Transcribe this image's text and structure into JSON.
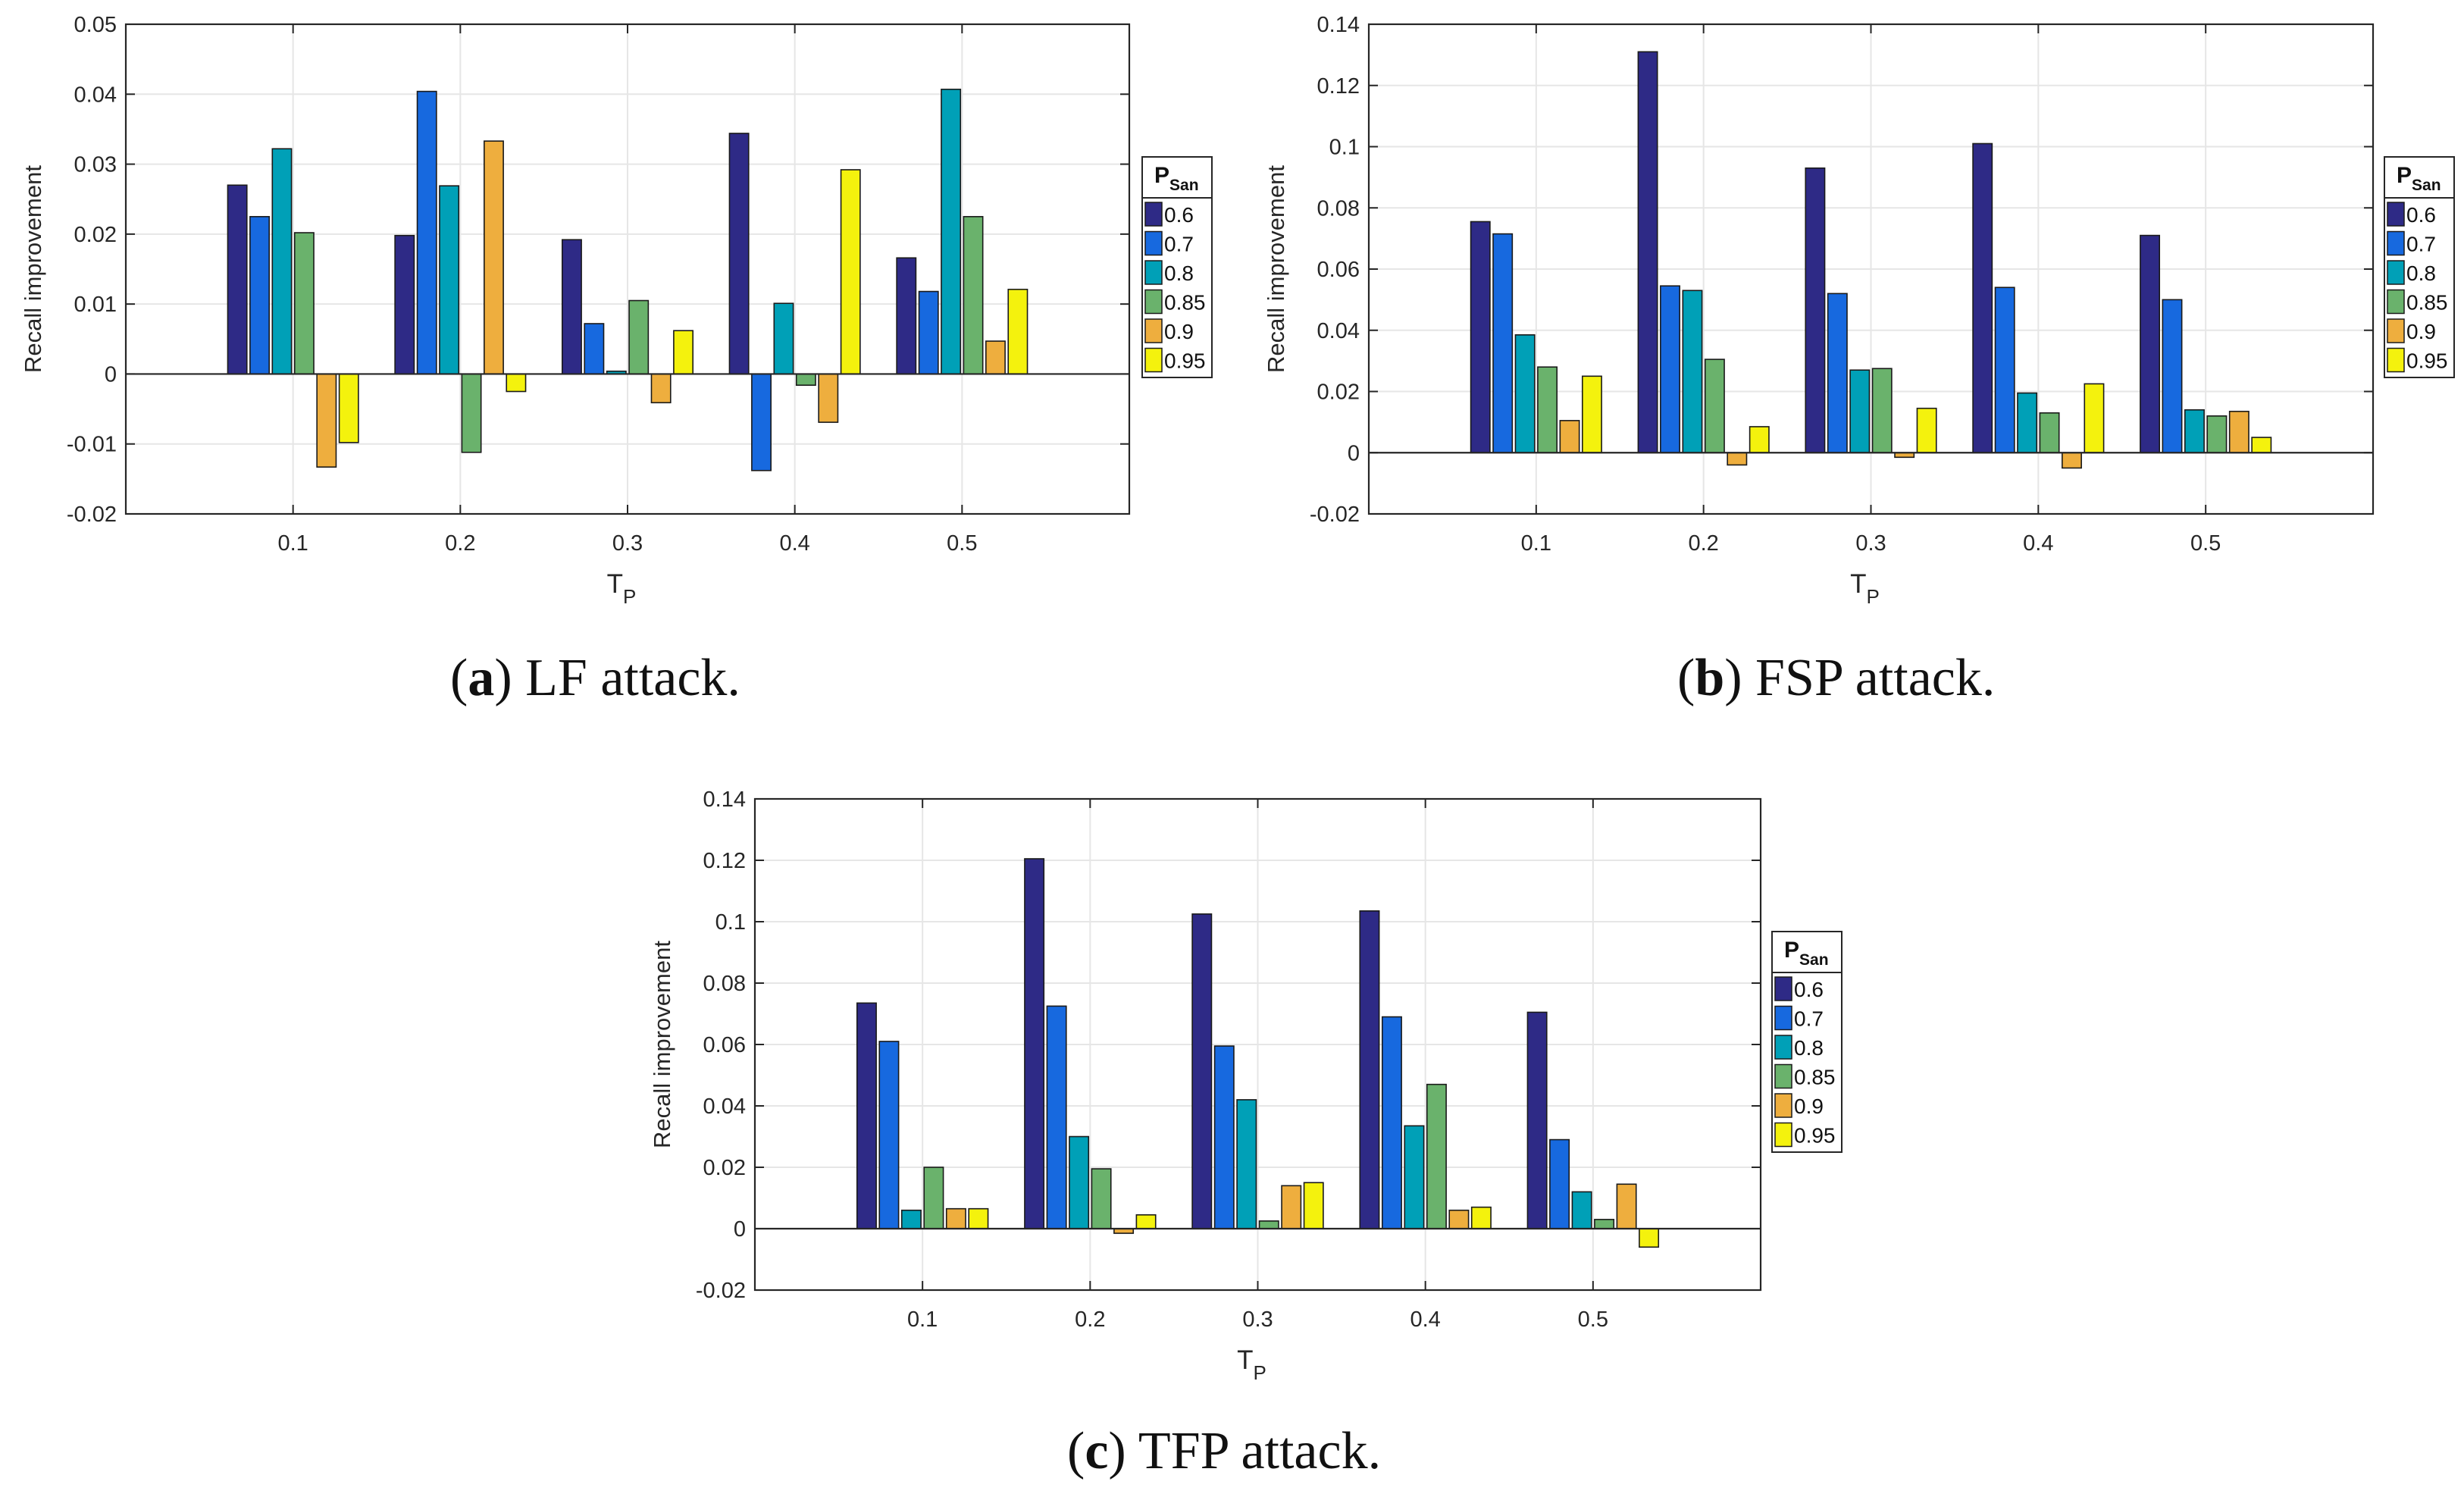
{
  "legend_title_main": "P",
  "legend_title_sub": "San",
  "colors": [
    "#2e2a86",
    "#1769df",
    "#00a0b7",
    "#6ab26c",
    "#eeae3e",
    "#f4f20d"
  ],
  "captions": [
    {
      "letter": "a",
      "text": ") LF attack."
    },
    {
      "letter": "b",
      "text": ") FSP attack."
    },
    {
      "letter": "c",
      "text": ") TFP attack."
    }
  ],
  "chart_data": [
    {
      "type": "bar",
      "caption": "(a) LF attack.",
      "xlabel_main": "T",
      "xlabel_sub": "P",
      "ylabel": "Recall improvement",
      "categories": [
        "0.1",
        "0.2",
        "0.3",
        "0.4",
        "0.5"
      ],
      "ylim": [
        -0.02,
        0.05
      ],
      "yticks": [
        "-0.02",
        "-0.01",
        "0",
        "0.01",
        "0.02",
        "0.03",
        "0.04",
        "0.05"
      ],
      "grid": true,
      "legend_position": "right",
      "series": [
        {
          "name": "0.6",
          "values": [
            0.027,
            0.0198,
            0.0192,
            0.0344,
            0.0166
          ]
        },
        {
          "name": "0.7",
          "values": [
            0.0225,
            0.0404,
            0.0072,
            -0.0138,
            0.0118
          ]
        },
        {
          "name": "0.8",
          "values": [
            0.0322,
            0.0269,
            0.0004,
            0.0101,
            0.0407
          ]
        },
        {
          "name": "0.85",
          "values": [
            0.0202,
            -0.0112,
            0.0105,
            -0.0016,
            0.0225
          ]
        },
        {
          "name": "0.9",
          "values": [
            -0.0133,
            0.0333,
            -0.0041,
            -0.0069,
            0.0047
          ]
        },
        {
          "name": "0.95",
          "values": [
            -0.0098,
            -0.0025,
            0.0062,
            0.0292,
            0.0121
          ]
        }
      ]
    },
    {
      "type": "bar",
      "caption": "(b) FSP attack.",
      "xlabel_main": "T",
      "xlabel_sub": "P",
      "ylabel": "Recall improvement",
      "categories": [
        "0.1",
        "0.2",
        "0.3",
        "0.4",
        "0.5"
      ],
      "ylim": [
        -0.02,
        0.14
      ],
      "yticks": [
        "-0.02",
        "0",
        "0.02",
        "0.04",
        "0.06",
        "0.08",
        "0.1",
        "0.12",
        "0.14"
      ],
      "grid": true,
      "legend_position": "right",
      "series": [
        {
          "name": "0.6",
          "values": [
            0.0755,
            0.131,
            0.093,
            0.101,
            0.071
          ]
        },
        {
          "name": "0.7",
          "values": [
            0.0715,
            0.0545,
            0.052,
            0.054,
            0.05
          ]
        },
        {
          "name": "0.8",
          "values": [
            0.0385,
            0.053,
            0.027,
            0.0195,
            0.014
          ]
        },
        {
          "name": "0.85",
          "values": [
            0.028,
            0.0305,
            0.0275,
            0.013,
            0.012
          ]
        },
        {
          "name": "0.9",
          "values": [
            0.0105,
            -0.004,
            -0.0015,
            -0.005,
            0.0135
          ]
        },
        {
          "name": "0.95",
          "values": [
            0.025,
            0.0085,
            0.0145,
            0.0225,
            0.005
          ]
        }
      ]
    },
    {
      "type": "bar",
      "caption": "(c) TFP attack.",
      "xlabel_main": "T",
      "xlabel_sub": "P",
      "ylabel": "Recall improvement",
      "categories": [
        "0.1",
        "0.2",
        "0.3",
        "0.4",
        "0.5"
      ],
      "ylim": [
        -0.02,
        0.14
      ],
      "yticks": [
        "-0.02",
        "0",
        "0.02",
        "0.04",
        "0.06",
        "0.08",
        "0.1",
        "0.12",
        "0.14"
      ],
      "grid": true,
      "legend_position": "right",
      "series": [
        {
          "name": "0.6",
          "values": [
            0.0735,
            0.1205,
            0.1025,
            0.1035,
            0.0705
          ]
        },
        {
          "name": "0.7",
          "values": [
            0.061,
            0.0725,
            0.0595,
            0.069,
            0.029
          ]
        },
        {
          "name": "0.8",
          "values": [
            0.006,
            0.03,
            0.042,
            0.0335,
            0.012
          ]
        },
        {
          "name": "0.85",
          "values": [
            0.02,
            0.0195,
            0.0025,
            0.047,
            0.003
          ]
        },
        {
          "name": "0.9",
          "values": [
            0.0065,
            -0.0015,
            0.014,
            0.006,
            0.0145
          ]
        },
        {
          "name": "0.95",
          "values": [
            0.0065,
            0.0045,
            0.015,
            0.007,
            -0.006
          ]
        }
      ]
    }
  ]
}
